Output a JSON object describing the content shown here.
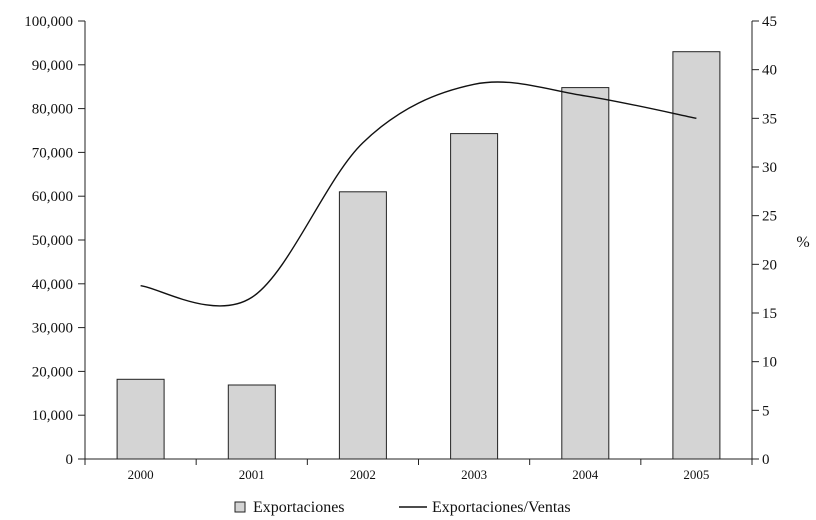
{
  "chart_data": {
    "type": "bar",
    "categories": [
      "2000",
      "2001",
      "2002",
      "2003",
      "2004",
      "2005"
    ],
    "series": [
      {
        "name": "Exportaciones",
        "type": "bar",
        "axis": "left",
        "values": [
          18200,
          16900,
          61000,
          74300,
          84800,
          93000
        ],
        "color": "#d4d4d4"
      },
      {
        "name": "Exportaciones/Ventas",
        "type": "line",
        "axis": "right",
        "values": [
          17.8,
          16.6,
          32.5,
          38.5,
          37.3,
          35.0
        ],
        "color": "#111111"
      }
    ],
    "y_left": {
      "ylim": [
        0,
        100000
      ],
      "ticks": [
        "0",
        "10,000",
        "20,000",
        "30,000",
        "40,000",
        "50,000",
        "60,000",
        "70,000",
        "80,000",
        "90,000",
        "100,000"
      ]
    },
    "y_right": {
      "ylim": [
        0,
        45
      ],
      "label": "%",
      "ticks": [
        "0",
        "5",
        "10",
        "15",
        "20",
        "25",
        "30",
        "35",
        "40",
        "45"
      ]
    },
    "grid": false,
    "legend_position": "bottom-center"
  }
}
